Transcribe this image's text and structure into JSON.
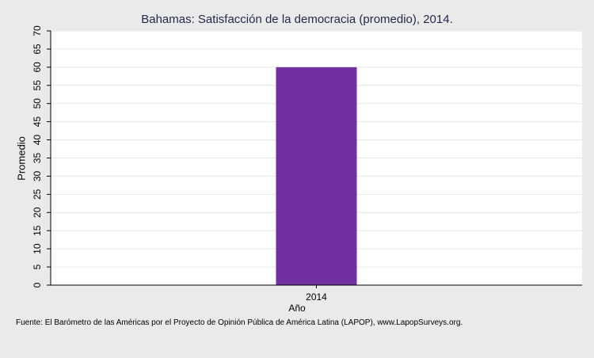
{
  "chart_data": {
    "type": "bar",
    "title": "Bahamas: Satisfacción de la democracia (promedio), 2014.",
    "xlabel": "Año",
    "ylabel": "Promedio",
    "categories": [
      "2014"
    ],
    "values": [
      60
    ],
    "ylim": [
      0,
      70
    ],
    "yticks": [
      0,
      5,
      10,
      15,
      20,
      25,
      30,
      35,
      40,
      45,
      50,
      55,
      60,
      65,
      70
    ],
    "grid": true,
    "bar_color": "#7030a0",
    "plot_background": "#ffffff",
    "page_background": "#eaeaea"
  },
  "source_note": "Fuente: El Barómetro de las Américas por el Proyecto de Opinión Pública de América Latina (LAPOP), www.LapopSurveys.org."
}
